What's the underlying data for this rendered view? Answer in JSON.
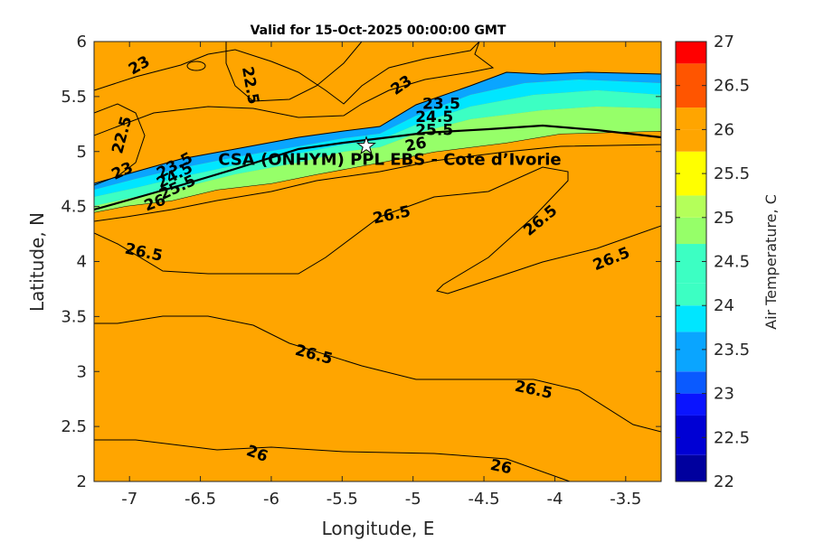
{
  "chart_data": {
    "type": "contour",
    "title": "Valid for 15-Oct-2025 00:00:00 GMT",
    "xlabel": "Longitude, E",
    "ylabel": "Latitude, N",
    "xlim": [
      -7.25,
      -3.25
    ],
    "ylim": [
      2,
      6
    ],
    "x_ticks": [
      "-7",
      "-6.5",
      "-6",
      "-5.5",
      "-5",
      "-4.5",
      "-4",
      "-3.5"
    ],
    "x_tick_values": [
      -7,
      -6.5,
      -6,
      -5.5,
      -5,
      -4.5,
      -4,
      -3.5
    ],
    "y_ticks": [
      "2",
      "2.5",
      "3",
      "3.5",
      "4",
      "4.5",
      "5",
      "5.5",
      "6"
    ],
    "y_tick_values": [
      2,
      2.5,
      3,
      3.5,
      4,
      4.5,
      5,
      5.5,
      6
    ],
    "colorbar": {
      "label": "Air Temperature, C",
      "ticks": [
        "22",
        "22.5",
        "23",
        "23.5",
        "24",
        "24.5",
        "25",
        "25.5",
        "26",
        "26.5",
        "27"
      ],
      "levels": [
        22,
        22.25,
        22.5,
        22.75,
        23,
        23.25,
        23.5,
        23.75,
        24,
        24.25,
        24.5,
        24.75,
        25,
        25.25,
        25.5,
        25.75,
        26,
        26.5,
        27
      ],
      "colors": [
        "#00009e",
        "#0000d4",
        "#0a14ff",
        "#0a5aff",
        "#0aa5ff",
        "#00e6ff",
        "#3cffc3",
        "#96ff69",
        "#ffff00",
        "#ffa500",
        "#ff5500",
        "#ff0000"
      ],
      "band_edges": [
        22,
        22.5,
        23,
        23.5,
        24,
        24.5,
        25,
        25.5,
        26,
        26.5,
        27
      ]
    },
    "contour_labels": [
      {
        "text": "23",
        "lon": -6.93,
        "lat": 5.78,
        "angle": -30
      },
      {
        "text": "22.5",
        "lon": -6.15,
        "lat": 5.6,
        "angle": 80
      },
      {
        "text": "23",
        "lon": -5.08,
        "lat": 5.6,
        "angle": -35
      },
      {
        "text": "22.5",
        "lon": -7.05,
        "lat": 5.15,
        "angle": -75
      },
      {
        "text": "23",
        "lon": -7.05,
        "lat": 4.82,
        "angle": -25
      },
      {
        "text": "23.5",
        "lon": -4.8,
        "lat": 5.43,
        "angle": 0
      },
      {
        "text": "24.5",
        "lon": -4.85,
        "lat": 5.31,
        "angle": 0
      },
      {
        "text": "25.5",
        "lon": -4.85,
        "lat": 5.19,
        "angle": 0
      },
      {
        "text": "26",
        "lon": -4.98,
        "lat": 5.06,
        "angle": -12
      },
      {
        "text": "23.5",
        "lon": -6.68,
        "lat": 4.87,
        "angle": -28
      },
      {
        "text": "24.5",
        "lon": -6.68,
        "lat": 4.78,
        "angle": -28
      },
      {
        "text": "25.5",
        "lon": -6.66,
        "lat": 4.67,
        "angle": -25
      },
      {
        "text": "26",
        "lon": -6.82,
        "lat": 4.53,
        "angle": -20
      },
      {
        "text": "26.5",
        "lon": -5.15,
        "lat": 4.42,
        "angle": -12
      },
      {
        "text": "26.5",
        "lon": -4.1,
        "lat": 4.37,
        "angle": -40
      },
      {
        "text": "26.5",
        "lon": -6.9,
        "lat": 4.08,
        "angle": 12
      },
      {
        "text": "26.5",
        "lon": -3.6,
        "lat": 4.02,
        "angle": -22
      },
      {
        "text": "26.5",
        "lon": -5.7,
        "lat": 3.15,
        "angle": 15
      },
      {
        "text": "26.5",
        "lon": -4.15,
        "lat": 2.83,
        "angle": 12
      },
      {
        "text": "26",
        "lon": -6.1,
        "lat": 2.25,
        "angle": 20
      },
      {
        "text": "26",
        "lon": -4.38,
        "lat": 2.13,
        "angle": 12
      }
    ],
    "site": {
      "label": "CSA (ONHYM) PPL EBS - Cote d’Ivorie",
      "lon": -5.33,
      "lat": 5.05
    }
  }
}
